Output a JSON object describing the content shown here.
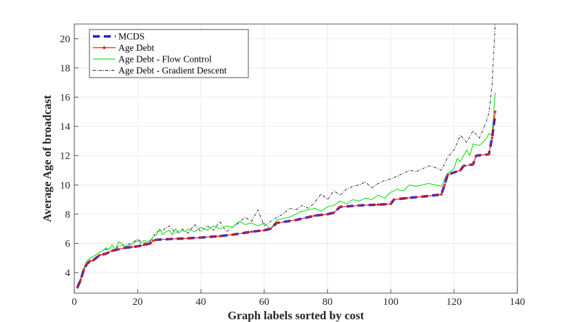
{
  "chart_data": {
    "type": "line",
    "xlabel": "Graph labels sorted by cost",
    "ylabel": "Average Age of broadcast",
    "xlim": [
      0,
      140
    ],
    "ylim": [
      2.6,
      21
    ],
    "xticks": [
      0,
      20,
      40,
      60,
      80,
      100,
      120,
      140
    ],
    "yticks": [
      4,
      6,
      8,
      10,
      12,
      14,
      16,
      18,
      20
    ],
    "grid": true,
    "legend_position": "top-left",
    "colors": {
      "mcds": "#1a1ad6",
      "age_debt": "#e8201c",
      "flow_control": "#22e022",
      "gradient_descent": "#111111"
    },
    "series": [
      {
        "name": "MCDS",
        "style": "thick-dashed",
        "x": [
          1,
          2,
          3,
          4,
          5,
          6,
          8,
          10,
          12,
          14,
          16,
          18,
          20,
          22,
          24,
          25,
          26,
          30,
          36,
          40,
          46,
          50,
          56,
          60,
          62,
          64,
          70,
          76,
          80,
          82,
          84,
          90,
          96,
          100,
          101,
          105,
          110,
          116,
          117,
          118,
          122,
          123,
          126,
          127,
          131,
          132,
          133
        ],
        "y": [
          3.0,
          3.5,
          4.2,
          4.6,
          4.8,
          4.85,
          5.2,
          5.3,
          5.5,
          5.6,
          5.7,
          5.75,
          5.8,
          5.9,
          6.0,
          6.2,
          6.25,
          6.3,
          6.35,
          6.4,
          6.5,
          6.6,
          6.8,
          6.9,
          7.0,
          7.4,
          7.6,
          7.9,
          8.0,
          8.1,
          8.5,
          8.6,
          8.65,
          8.7,
          9.0,
          9.1,
          9.2,
          9.35,
          10.0,
          10.7,
          11.0,
          11.3,
          11.4,
          12.0,
          12.1,
          13.2,
          14.8
        ]
      },
      {
        "name": "Age Debt",
        "style": "solid-dots",
        "x": [
          1,
          2,
          3,
          4,
          5,
          6,
          8,
          10,
          12,
          14,
          16,
          18,
          20,
          22,
          24,
          25,
          26,
          30,
          36,
          40,
          46,
          50,
          56,
          60,
          62,
          64,
          70,
          76,
          80,
          82,
          84,
          90,
          96,
          100,
          101,
          105,
          110,
          116,
          117,
          118,
          122,
          123,
          126,
          127,
          131,
          132,
          133
        ],
        "y": [
          3.0,
          3.5,
          4.2,
          4.6,
          4.8,
          4.85,
          5.2,
          5.3,
          5.5,
          5.6,
          5.7,
          5.75,
          5.8,
          5.9,
          6.0,
          6.2,
          6.25,
          6.3,
          6.35,
          6.4,
          6.5,
          6.6,
          6.8,
          6.9,
          7.0,
          7.4,
          7.6,
          7.9,
          8.0,
          8.1,
          8.5,
          8.6,
          8.65,
          8.7,
          9.0,
          9.1,
          9.2,
          9.35,
          10.0,
          10.7,
          11.0,
          11.3,
          11.4,
          12.0,
          12.1,
          13.2,
          15.0
        ]
      },
      {
        "name": "Age Debt - Flow Control",
        "style": "solid",
        "x": [
          1,
          2,
          3,
          4,
          5,
          6,
          8,
          9,
          10,
          11,
          12,
          13,
          14,
          15,
          16,
          18,
          20,
          21,
          22,
          24,
          25,
          26,
          27,
          28,
          29,
          30,
          31,
          32,
          33,
          34,
          35,
          36,
          38,
          40,
          42,
          44,
          46,
          48,
          50,
          52,
          54,
          56,
          58,
          60,
          62,
          64,
          66,
          68,
          70,
          72,
          74,
          76,
          78,
          80,
          82,
          84,
          86,
          88,
          90,
          92,
          94,
          96,
          98,
          100,
          102,
          104,
          106,
          108,
          110,
          112,
          114,
          116,
          117,
          118,
          120,
          121,
          122,
          124,
          125,
          126,
          128,
          130,
          131,
          132,
          133
        ],
        "y": [
          3.0,
          3.6,
          4.3,
          4.8,
          5.0,
          5.1,
          5.4,
          5.5,
          5.7,
          5.6,
          5.9,
          5.6,
          6.1,
          6.0,
          5.8,
          5.9,
          6.2,
          6.0,
          6.2,
          6.1,
          6.5,
          6.6,
          7.0,
          6.6,
          6.8,
          6.9,
          6.6,
          7.0,
          6.7,
          6.9,
          6.8,
          7.0,
          6.8,
          7.1,
          6.9,
          7.2,
          7.0,
          7.2,
          7.1,
          7.5,
          7.3,
          7.4,
          7.2,
          7.4,
          7.0,
          7.6,
          7.7,
          7.8,
          8.0,
          8.2,
          8.3,
          8.4,
          8.2,
          8.5,
          8.6,
          8.9,
          8.7,
          9.0,
          8.9,
          9.1,
          9.0,
          9.3,
          9.1,
          9.5,
          9.7,
          9.6,
          10.0,
          9.9,
          10.0,
          10.1,
          10.0,
          9.9,
          10.4,
          10.8,
          11.1,
          11.8,
          11.6,
          12.4,
          12.0,
          12.8,
          12.7,
          13.1,
          13.5,
          13.4,
          16.3
        ]
      },
      {
        "name": "Age Debt - Gradient Descent",
        "style": "dash-dot",
        "x": [
          1,
          2,
          3,
          4,
          5,
          6,
          8,
          10,
          12,
          14,
          16,
          18,
          20,
          22,
          24,
          26,
          28,
          30,
          32,
          34,
          36,
          38,
          40,
          42,
          44,
          46,
          48,
          50,
          52,
          54,
          56,
          58,
          60,
          62,
          64,
          66,
          68,
          70,
          72,
          74,
          76,
          78,
          80,
          82,
          84,
          86,
          88,
          90,
          92,
          94,
          96,
          98,
          100,
          102,
          104,
          106,
          108,
          110,
          112,
          114,
          116,
          118,
          120,
          122,
          124,
          126,
          128,
          130,
          131,
          132,
          133
        ],
        "y": [
          3.0,
          3.6,
          4.3,
          4.8,
          5.0,
          5.1,
          5.4,
          5.6,
          5.5,
          5.8,
          5.9,
          6.0,
          6.3,
          6.0,
          6.2,
          6.8,
          6.9,
          7.2,
          6.7,
          7.0,
          6.7,
          7.3,
          6.8,
          7.2,
          6.9,
          7.5,
          6.8,
          7.1,
          7.4,
          7.8,
          7.5,
          8.3,
          7.2,
          7.5,
          7.8,
          8.0,
          8.4,
          8.3,
          8.6,
          8.4,
          8.8,
          9.4,
          9.0,
          9.6,
          9.3,
          9.7,
          9.9,
          10.0,
          10.2,
          9.8,
          10.1,
          10.3,
          10.4,
          10.6,
          10.8,
          11.0,
          10.9,
          11.1,
          11.3,
          11.2,
          11.0,
          11.9,
          12.4,
          13.4,
          12.9,
          13.7,
          13.2,
          14.2,
          14.9,
          16.8,
          21.0
        ]
      }
    ]
  }
}
